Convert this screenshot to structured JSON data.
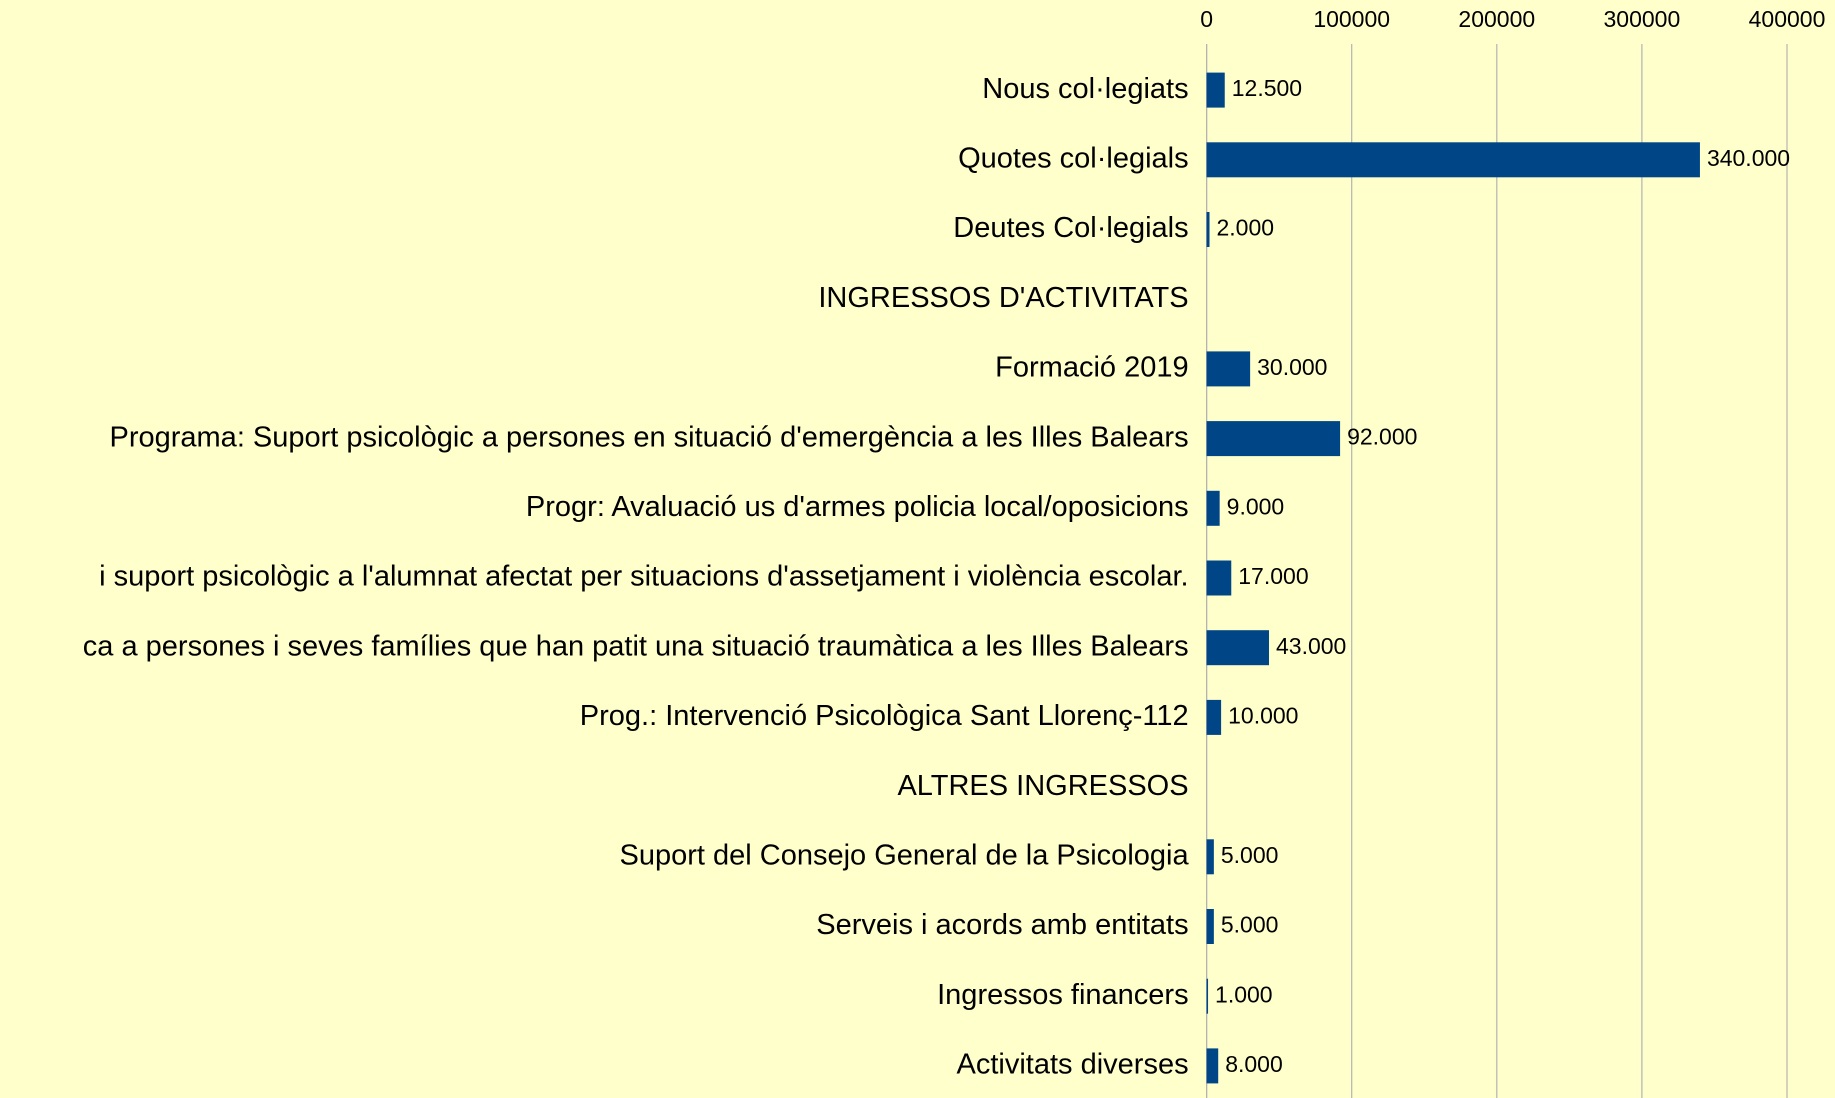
{
  "chart_data": {
    "type": "bar",
    "orientation": "horizontal",
    "categories": [
      "Nous col·legiats",
      "Quotes col·legials",
      "Deutes Col·legials",
      "INGRESSOS D'ACTIVITATS",
      "Formació 2019",
      "Programa: Suport psicològic a persones en situació d'emergència a les Illes Balears",
      "Progr: Avaluació us d'armes policia local/oposicions",
      "i suport psicològic a l'alumnat afectat per situacions d'assetjament i violència escolar.",
      "ca a persones i seves famílies que han patit una situació traumàtica a les Illes Balears",
      "Prog.: Intervenció Psicològica Sant Llorenç-112",
      "ALTRES INGRESSOS",
      "Suport del Consejo General de la Psicologia",
      "Serveis i acords amb entitats",
      "Ingressos financers",
      "Activitats diverses"
    ],
    "values": [
      12500,
      340000,
      2000,
      null,
      30000,
      92000,
      9000,
      17000,
      43000,
      10000,
      null,
      5000,
      5000,
      1000,
      8000
    ],
    "value_labels": [
      "12.500",
      "340.000",
      "2.000",
      null,
      "30.000",
      "92.000",
      "9.000",
      "17.000",
      "43.000",
      "10.000",
      null,
      "5.000",
      "5.000",
      "1.000",
      "8.000"
    ],
    "color": "#004586",
    "xlim": [
      0,
      400000
    ],
    "xticks": [
      0,
      100000,
      200000,
      300000,
      400000
    ],
    "grid": true
  }
}
